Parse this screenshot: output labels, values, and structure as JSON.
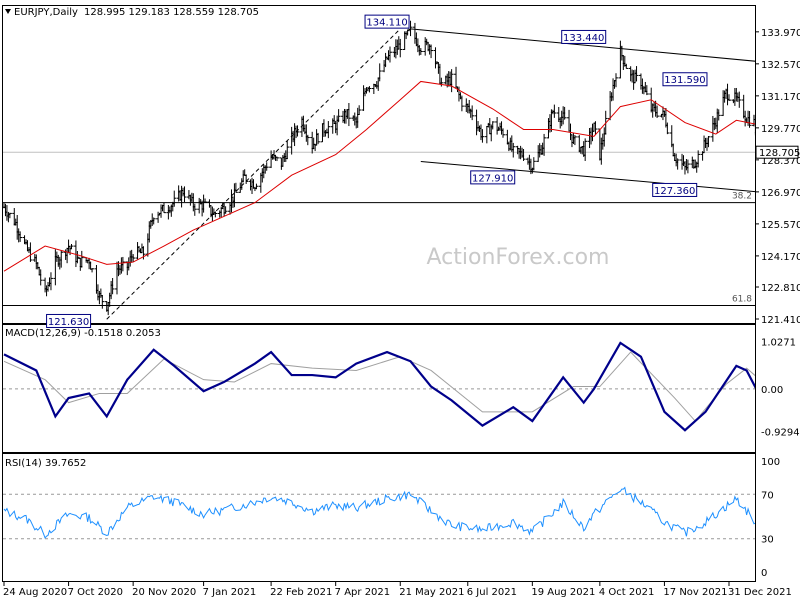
{
  "chart_data": {
    "type": "ohlc",
    "symbol_header": "EURJPY,Daily",
    "ohlc_header": "128.995 129.183 128.559 128.705",
    "last_price": "128.705",
    "watermark": "ActionForex.com",
    "x_ticks": [
      "24 Aug 2020",
      "7 Oct 2020",
      "20 Nov 2020",
      "7 Jan 2021",
      "22 Feb 2021",
      "7 Apr 2021",
      "21 May 2021",
      "6 Jul 2021",
      "19 Aug 2021",
      "4 Oct 2021",
      "17 Nov 2021",
      "31 Dec 2021"
    ],
    "price_panel": {
      "ylim": [
        121.41,
        134.4
      ],
      "y_ticks": [
        "133.970",
        "132.570",
        "131.170",
        "129.770",
        "128.370",
        "126.970",
        "125.570",
        "124.170",
        "122.810",
        "121.410"
      ],
      "fib_levels": [
        {
          "label": "38.2",
          "value": 126.5
        },
        {
          "label": "61.8",
          "value": 122.0
        }
      ],
      "annotations": [
        {
          "text": "134.110",
          "value": 134.11
        },
        {
          "text": "133.440",
          "value": 133.44
        },
        {
          "text": "131.590",
          "value": 131.59
        },
        {
          "text": "127.910",
          "value": 127.91
        },
        {
          "text": "127.360",
          "value": 127.36
        },
        {
          "text": "121.630",
          "value": 121.63
        }
      ],
      "close_series": [
        {
          "d": "2020-08-24",
          "v": 126.3
        },
        {
          "d": "2020-09-01",
          "v": 125.6
        },
        {
          "d": "2020-09-08",
          "v": 124.5
        },
        {
          "d": "2020-09-15",
          "v": 123.8
        },
        {
          "d": "2020-09-21",
          "v": 122.5
        },
        {
          "d": "2020-09-28",
          "v": 123.9
        },
        {
          "d": "2020-10-07",
          "v": 124.6
        },
        {
          "d": "2020-10-14",
          "v": 123.9
        },
        {
          "d": "2020-10-21",
          "v": 124.0
        },
        {
          "d": "2020-10-28",
          "v": 122.4
        },
        {
          "d": "2020-11-02",
          "v": 122.0
        },
        {
          "d": "2020-11-09",
          "v": 123.6
        },
        {
          "d": "2020-11-16",
          "v": 123.7
        },
        {
          "d": "2020-11-20",
          "v": 124.3
        },
        {
          "d": "2020-11-27",
          "v": 124.3
        },
        {
          "d": "2020-12-04",
          "v": 126.0
        },
        {
          "d": "2020-12-11",
          "v": 126.2
        },
        {
          "d": "2020-12-18",
          "v": 126.5
        },
        {
          "d": "2020-12-24",
          "v": 127.0
        },
        {
          "d": "2020-12-31",
          "v": 126.4
        },
        {
          "d": "2021-01-07",
          "v": 126.4
        },
        {
          "d": "2021-01-14",
          "v": 126.0
        },
        {
          "d": "2021-01-21",
          "v": 126.3
        },
        {
          "d": "2021-01-28",
          "v": 126.8
        },
        {
          "d": "2021-02-04",
          "v": 127.6
        },
        {
          "d": "2021-02-11",
          "v": 127.3
        },
        {
          "d": "2021-02-22",
          "v": 128.5
        },
        {
          "d": "2021-03-01",
          "v": 128.2
        },
        {
          "d": "2021-03-08",
          "v": 129.3
        },
        {
          "d": "2021-03-15",
          "v": 130.1
        },
        {
          "d": "2021-03-22",
          "v": 129.0
        },
        {
          "d": "2021-03-29",
          "v": 129.7
        },
        {
          "d": "2021-04-07",
          "v": 129.9
        },
        {
          "d": "2021-04-14",
          "v": 130.4
        },
        {
          "d": "2021-04-21",
          "v": 130.0
        },
        {
          "d": "2021-04-28",
          "v": 131.6
        },
        {
          "d": "2021-05-05",
          "v": 131.8
        },
        {
          "d": "2021-05-12",
          "v": 132.8
        },
        {
          "d": "2021-05-21",
          "v": 133.4
        },
        {
          "d": "2021-05-28",
          "v": 134.0
        },
        {
          "d": "2021-06-04",
          "v": 133.3
        },
        {
          "d": "2021-06-11",
          "v": 133.4
        },
        {
          "d": "2021-06-18",
          "v": 131.7
        },
        {
          "d": "2021-06-25",
          "v": 131.9
        },
        {
          "d": "2021-07-02",
          "v": 130.9
        },
        {
          "d": "2021-07-09",
          "v": 130.4
        },
        {
          "d": "2021-07-16",
          "v": 129.4
        },
        {
          "d": "2021-07-23",
          "v": 129.9
        },
        {
          "d": "2021-07-30",
          "v": 129.6
        },
        {
          "d": "2021-08-06",
          "v": 128.7
        },
        {
          "d": "2021-08-13",
          "v": 128.6
        },
        {
          "d": "2021-08-19",
          "v": 128.1
        },
        {
          "d": "2021-08-26",
          "v": 129.0
        },
        {
          "d": "2021-09-02",
          "v": 130.5
        },
        {
          "d": "2021-09-09",
          "v": 130.2
        },
        {
          "d": "2021-09-16",
          "v": 129.2
        },
        {
          "d": "2021-09-23",
          "v": 128.8
        },
        {
          "d": "2021-09-30",
          "v": 129.8
        },
        {
          "d": "2021-10-04",
          "v": 128.6
        },
        {
          "d": "2021-10-11",
          "v": 131.0
        },
        {
          "d": "2021-10-18",
          "v": 133.1
        },
        {
          "d": "2021-10-25",
          "v": 132.0
        },
        {
          "d": "2021-11-01",
          "v": 131.8
        },
        {
          "d": "2021-11-08",
          "v": 130.6
        },
        {
          "d": "2021-11-17",
          "v": 130.3
        },
        {
          "d": "2021-11-24",
          "v": 128.5
        },
        {
          "d": "2021-12-01",
          "v": 128.0
        },
        {
          "d": "2021-12-08",
          "v": 128.3
        },
        {
          "d": "2021-12-15",
          "v": 129.1
        },
        {
          "d": "2021-12-22",
          "v": 130.1
        },
        {
          "d": "2021-12-29",
          "v": 131.3
        },
        {
          "d": "2022-01-05",
          "v": 131.0
        },
        {
          "d": "2022-01-12",
          "v": 130.2
        },
        {
          "d": "2022-01-17",
          "v": 130.0
        },
        {
          "d": "2022-01-21",
          "v": 128.7
        }
      ],
      "ma_series": [
        {
          "d": "2020-08-24",
          "v": 123.5
        },
        {
          "d": "2020-09-21",
          "v": 124.6
        },
        {
          "d": "2020-10-14",
          "v": 124.2
        },
        {
          "d": "2020-11-02",
          "v": 123.8
        },
        {
          "d": "2020-11-20",
          "v": 123.9
        },
        {
          "d": "2020-12-11",
          "v": 124.6
        },
        {
          "d": "2020-12-31",
          "v": 125.3
        },
        {
          "d": "2021-01-21",
          "v": 125.9
        },
        {
          "d": "2021-02-11",
          "v": 126.5
        },
        {
          "d": "2021-03-08",
          "v": 127.7
        },
        {
          "d": "2021-04-07",
          "v": 128.6
        },
        {
          "d": "2021-04-28",
          "v": 129.7
        },
        {
          "d": "2021-05-21",
          "v": 131.0
        },
        {
          "d": "2021-06-04",
          "v": 131.8
        },
        {
          "d": "2021-06-25",
          "v": 131.6
        },
        {
          "d": "2021-07-23",
          "v": 130.6
        },
        {
          "d": "2021-08-13",
          "v": 129.7
        },
        {
          "d": "2021-09-02",
          "v": 129.7
        },
        {
          "d": "2021-09-30",
          "v": 129.4
        },
        {
          "d": "2021-10-18",
          "v": 130.7
        },
        {
          "d": "2021-11-08",
          "v": 131.0
        },
        {
          "d": "2021-12-01",
          "v": 130.0
        },
        {
          "d": "2021-12-22",
          "v": 129.5
        },
        {
          "d": "2022-01-05",
          "v": 130.1
        },
        {
          "d": "2022-01-21",
          "v": 129.9
        }
      ],
      "lines": [
        {
          "name": "upper channel",
          "from": {
            "d": "2021-05-28",
            "v": 134.1
          },
          "to": {
            "d": "2022-02-01",
            "v": 132.6
          }
        },
        {
          "name": "lower channel",
          "from": {
            "d": "2021-06-04",
            "v": 128.3
          },
          "to": {
            "d": "2022-02-01",
            "v": 126.9
          }
        },
        {
          "name": "dashed trend",
          "from": {
            "d": "2020-11-02",
            "v": 121.4
          },
          "to": {
            "d": "2021-05-21",
            "v": 134.1
          }
        }
      ]
    },
    "macd_panel": {
      "title": "MACD(12,26,9) -0.1518 0.2053",
      "y_ticks": [
        "1.0271",
        "0.00",
        "-0.9294"
      ],
      "ylim": [
        -1.2,
        1.15
      ],
      "macd_series": [
        {
          "d": "2020-08-24",
          "v": 0.75
        },
        {
          "d": "2020-09-15",
          "v": 0.4
        },
        {
          "d": "2020-09-28",
          "v": -0.6
        },
        {
          "d": "2020-10-07",
          "v": -0.2
        },
        {
          "d": "2020-10-21",
          "v": -0.1
        },
        {
          "d": "2020-11-02",
          "v": -0.6
        },
        {
          "d": "2020-11-16",
          "v": 0.2
        },
        {
          "d": "2020-12-04",
          "v": 0.85
        },
        {
          "d": "2020-12-18",
          "v": 0.5
        },
        {
          "d": "2021-01-07",
          "v": -0.05
        },
        {
          "d": "2021-01-21",
          "v": 0.15
        },
        {
          "d": "2021-02-11",
          "v": 0.55
        },
        {
          "d": "2021-02-22",
          "v": 0.8
        },
        {
          "d": "2021-03-08",
          "v": 0.3
        },
        {
          "d": "2021-03-22",
          "v": 0.3
        },
        {
          "d": "2021-04-07",
          "v": 0.25
        },
        {
          "d": "2021-04-21",
          "v": 0.55
        },
        {
          "d": "2021-05-12",
          "v": 0.8
        },
        {
          "d": "2021-05-28",
          "v": 0.6
        },
        {
          "d": "2021-06-11",
          "v": 0.05
        },
        {
          "d": "2021-06-25",
          "v": -0.25
        },
        {
          "d": "2021-07-16",
          "v": -0.8
        },
        {
          "d": "2021-08-06",
          "v": -0.4
        },
        {
          "d": "2021-08-19",
          "v": -0.7
        },
        {
          "d": "2021-09-09",
          "v": 0.25
        },
        {
          "d": "2021-09-23",
          "v": -0.3
        },
        {
          "d": "2021-09-30",
          "v": 0.0
        },
        {
          "d": "2021-10-18",
          "v": 1.0
        },
        {
          "d": "2021-11-01",
          "v": 0.7
        },
        {
          "d": "2021-11-17",
          "v": -0.5
        },
        {
          "d": "2021-12-01",
          "v": -0.9
        },
        {
          "d": "2021-12-15",
          "v": -0.5
        },
        {
          "d": "2022-01-05",
          "v": 0.5
        },
        {
          "d": "2022-01-12",
          "v": 0.4
        },
        {
          "d": "2022-01-21",
          "v": -0.15
        }
      ],
      "signal_series": [
        {
          "d": "2020-08-24",
          "v": 0.6
        },
        {
          "d": "2020-09-21",
          "v": 0.2
        },
        {
          "d": "2020-10-07",
          "v": -0.3
        },
        {
          "d": "2020-10-28",
          "v": -0.1
        },
        {
          "d": "2020-11-16",
          "v": -0.1
        },
        {
          "d": "2020-12-11",
          "v": 0.65
        },
        {
          "d": "2021-01-07",
          "v": 0.2
        },
        {
          "d": "2021-01-28",
          "v": 0.15
        },
        {
          "d": "2021-02-22",
          "v": 0.55
        },
        {
          "d": "2021-03-22",
          "v": 0.45
        },
        {
          "d": "2021-04-21",
          "v": 0.4
        },
        {
          "d": "2021-05-21",
          "v": 0.7
        },
        {
          "d": "2021-06-11",
          "v": 0.4
        },
        {
          "d": "2021-07-16",
          "v": -0.5
        },
        {
          "d": "2021-08-19",
          "v": -0.5
        },
        {
          "d": "2021-09-16",
          "v": 0.05
        },
        {
          "d": "2021-10-04",
          "v": 0.05
        },
        {
          "d": "2021-10-25",
          "v": 0.8
        },
        {
          "d": "2021-11-24",
          "v": -0.2
        },
        {
          "d": "2021-12-08",
          "v": -0.7
        },
        {
          "d": "2021-12-29",
          "v": 0.1
        },
        {
          "d": "2022-01-12",
          "v": 0.45
        },
        {
          "d": "2022-01-21",
          "v": 0.2
        }
      ]
    },
    "rsi_panel": {
      "title": "RSI(14) 39.7652",
      "y_ticks": [
        "100",
        "70",
        "30",
        "0"
      ],
      "ylim": [
        0,
        100
      ],
      "levels": [
        70,
        30
      ],
      "rsi_series": [
        {
          "d": "2020-08-24",
          "v": 55
        },
        {
          "d": "2020-09-08",
          "v": 48
        },
        {
          "d": "2020-09-21",
          "v": 34
        },
        {
          "d": "2020-10-07",
          "v": 52
        },
        {
          "d": "2020-10-21",
          "v": 49
        },
        {
          "d": "2020-11-02",
          "v": 35
        },
        {
          "d": "2020-11-16",
          "v": 58
        },
        {
          "d": "2020-12-04",
          "v": 68
        },
        {
          "d": "2020-12-18",
          "v": 63
        },
        {
          "d": "2021-01-07",
          "v": 52
        },
        {
          "d": "2021-01-21",
          "v": 56
        },
        {
          "d": "2021-02-11",
          "v": 63
        },
        {
          "d": "2021-02-22",
          "v": 68
        },
        {
          "d": "2021-03-08",
          "v": 63
        },
        {
          "d": "2021-03-22",
          "v": 55
        },
        {
          "d": "2021-04-07",
          "v": 60
        },
        {
          "d": "2021-04-21",
          "v": 58
        },
        {
          "d": "2021-05-12",
          "v": 66
        },
        {
          "d": "2021-05-28",
          "v": 70
        },
        {
          "d": "2021-06-11",
          "v": 55
        },
        {
          "d": "2021-06-25",
          "v": 42
        },
        {
          "d": "2021-07-16",
          "v": 38
        },
        {
          "d": "2021-08-06",
          "v": 45
        },
        {
          "d": "2021-08-19",
          "v": 36
        },
        {
          "d": "2021-09-09",
          "v": 62
        },
        {
          "d": "2021-09-23",
          "v": 40
        },
        {
          "d": "2021-09-30",
          "v": 52
        },
        {
          "d": "2021-10-18",
          "v": 75
        },
        {
          "d": "2021-11-01",
          "v": 63
        },
        {
          "d": "2021-11-17",
          "v": 45
        },
        {
          "d": "2021-12-01",
          "v": 35
        },
        {
          "d": "2021-12-15",
          "v": 45
        },
        {
          "d": "2022-01-05",
          "v": 66
        },
        {
          "d": "2022-01-12",
          "v": 55
        },
        {
          "d": "2022-01-21",
          "v": 40
        }
      ]
    }
  }
}
